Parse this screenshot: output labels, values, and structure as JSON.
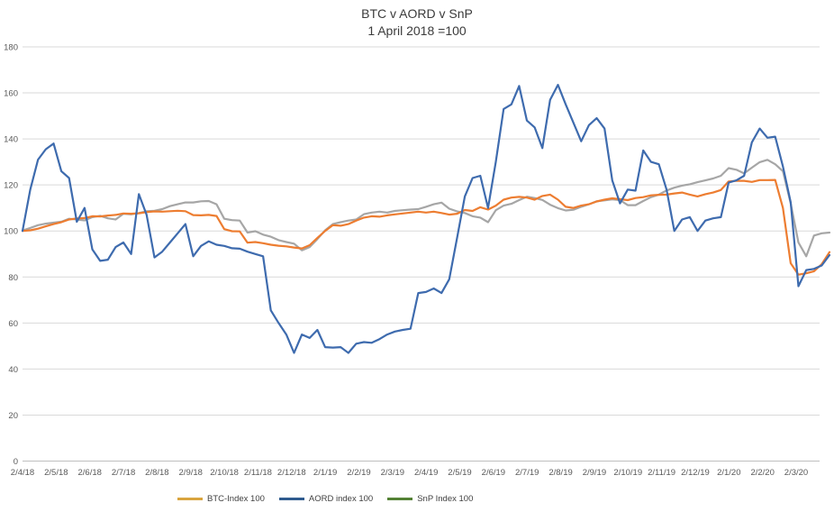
{
  "title": {
    "line1": "BTC v AORD v SnP",
    "line2": "1 April 2018 =100"
  },
  "legend": {
    "entries": [
      {
        "label": "BTC-Index 100",
        "color": "#D9A43E"
      },
      {
        "label": "AORD index 100",
        "color": "#2F5B8F"
      },
      {
        "label": "SnP Index 100",
        "color": "#548235"
      }
    ]
  },
  "chart_data": {
    "type": "line",
    "title": "BTC v AORD v SnP",
    "subtitle": "1 April 2018 =100",
    "xlabel": "",
    "ylabel": "",
    "ylim": [
      0,
      180
    ],
    "y_ticks": [
      0,
      20,
      40,
      60,
      80,
      100,
      120,
      140,
      160,
      180
    ],
    "grid": "horizontal",
    "legend_position": "bottom",
    "x_unit": "weekly points, labels shown monthly",
    "x_tick_labels": [
      "2/4/18",
      "2/5/18",
      "2/6/18",
      "2/7/18",
      "2/8/18",
      "2/9/18",
      "2/10/18",
      "2/11/18",
      "2/12/18",
      "2/1/19",
      "2/2/19",
      "2/3/19",
      "2/4/19",
      "2/5/19",
      "2/6/19",
      "2/7/19",
      "2/8/19",
      "2/9/19",
      "2/10/19",
      "2/11/19",
      "2/12/19",
      "2/1/20",
      "2/2/20",
      "2/3/20"
    ],
    "series": [
      {
        "name": "BTC-Index 100",
        "color": "#ED7D31",
        "values": [
          100,
          100.3,
          101,
          102,
          103,
          103.8,
          105,
          105.4,
          105.6,
          106.4,
          106.3,
          106.7,
          107,
          107.6,
          107.5,
          107.7,
          108.2,
          108.5,
          108.4,
          108.6,
          108.8,
          108.6,
          106.9,
          106.8,
          107,
          106.5,
          100.8,
          99.9,
          99.8,
          94.9,
          95.2,
          94.7,
          94,
          93.6,
          93.3,
          92.8,
          92.4,
          93.8,
          97,
          100,
          102.5,
          102.3,
          103,
          104.5,
          105.8,
          106.4,
          106.2,
          106.8,
          107.2,
          107.6,
          108,
          108.4,
          108,
          108.4,
          107.8,
          107.1,
          107.5,
          109.1,
          108.7,
          110.3,
          109.3,
          111,
          113.6,
          114.5,
          114.8,
          114.5,
          113.6,
          115.2,
          115.8,
          113.6,
          110.5,
          110,
          111,
          111.6,
          112.8,
          113.6,
          114.2,
          113.8,
          113.4,
          114.3,
          114.7,
          115.5,
          115.7,
          115.8,
          116.3,
          116.7,
          115.8,
          115,
          116,
          116.7,
          117.8,
          121.5,
          121.8,
          121.8,
          121.3,
          122.1,
          122.1,
          122.2,
          110,
          86,
          81,
          81.6,
          82.5,
          85.6,
          90.8
        ]
      },
      {
        "name": "AORD index 100",
        "color": "#3E6BAE",
        "values": [
          100,
          118,
          131,
          135.5,
          138,
          126,
          123,
          104,
          110,
          92,
          87,
          87.5,
          93,
          95,
          90,
          116,
          107,
          88.5,
          91,
          95,
          99,
          103,
          89,
          93.5,
          95.5,
          94,
          93.5,
          92.5,
          92.3,
          91,
          90,
          89,
          65.5,
          60,
          55,
          47,
          55,
          53.5,
          57,
          49.5,
          49.3,
          49.5,
          47,
          51,
          51.7,
          51.4,
          53,
          55,
          56.3,
          57,
          57.5,
          73,
          73.5,
          75,
          73,
          79,
          97,
          115,
          123,
          124,
          110,
          130,
          153,
          155,
          163,
          148,
          145,
          136,
          157,
          163.5,
          155,
          147,
          139,
          146,
          149,
          144.5,
          122,
          112,
          118,
          117.5,
          135,
          130,
          129,
          118,
          100,
          105,
          106,
          100,
          104.5,
          105.5,
          106,
          121,
          122,
          124,
          138.5,
          144.5,
          140.5,
          141,
          128,
          112.5,
          76,
          83,
          83.5,
          85,
          89.5
        ]
      },
      {
        "name": "SnP Index 100",
        "color": "#A6A6A6",
        "values": [
          100.2,
          101.3,
          102.5,
          103.2,
          103.6,
          104,
          105.3,
          105,
          104.6,
          106,
          106.6,
          105.5,
          105,
          107.5,
          107.2,
          107.8,
          108.6,
          108.8,
          109.5,
          110.8,
          111.6,
          112.4,
          112.4,
          112.9,
          113,
          111.6,
          105.3,
          104.7,
          104.5,
          99.3,
          99.9,
          98.4,
          97.5,
          96,
          95.2,
          94.5,
          91.6,
          93,
          96.5,
          100.3,
          103,
          103.8,
          104.5,
          105,
          107.3,
          108,
          108.4,
          108,
          108.7,
          109,
          109.3,
          109.5,
          110.5,
          111.6,
          112.3,
          109.7,
          108.5,
          107.8,
          106.4,
          105.8,
          103.8,
          109,
          111,
          111.8,
          113.4,
          114.9,
          114.3,
          113.5,
          111.4,
          109.9,
          108.9,
          109.2,
          110.5,
          111.6,
          112.9,
          113.3,
          113.7,
          113.4,
          111.2,
          111.2,
          113,
          114.7,
          115.8,
          117.6,
          118.8,
          119.7,
          120.3,
          121.2,
          122,
          122.8,
          124,
          127.3,
          126.6,
          125,
          127.5,
          129.9,
          130.9,
          129,
          126,
          112,
          95,
          89,
          98,
          99,
          99.3
        ]
      }
    ],
    "colors": {
      "gridline": "#D9D9D9",
      "axis": "#BFBFBF",
      "tick_text": "#595959",
      "title_text": "#3b3b3b"
    }
  }
}
